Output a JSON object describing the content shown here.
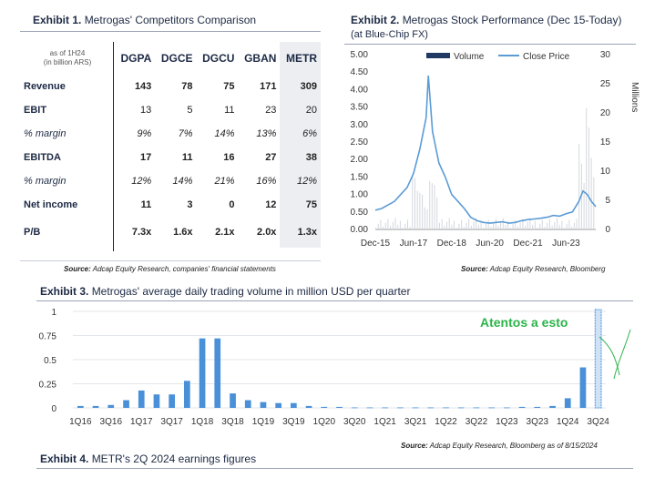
{
  "exhibit1": {
    "num": "Exhibit 1.",
    "title": "Metrogas' Competitors Comparison",
    "as_of_line1": "as of 1H24",
    "as_of_line2": "(in billion ARS)",
    "columns": [
      "DGPA",
      "DGCE",
      "DGCU",
      "GBAN",
      "METR"
    ],
    "rows": [
      {
        "label": "Revenue",
        "style": "bold",
        "values": [
          "143",
          "78",
          "75",
          "171",
          "309"
        ]
      },
      {
        "label": "EBIT",
        "style": "bold-label",
        "values": [
          "13",
          "5",
          "11",
          "23",
          "20"
        ]
      },
      {
        "label": "% margin",
        "style": "italic",
        "values": [
          "9%",
          "7%",
          "14%",
          "13%",
          "6%"
        ]
      },
      {
        "label": "EBITDA",
        "style": "bold",
        "values": [
          "17",
          "11",
          "16",
          "27",
          "38"
        ]
      },
      {
        "label": "% margin",
        "style": "italic",
        "values": [
          "12%",
          "14%",
          "21%",
          "16%",
          "12%"
        ]
      },
      {
        "label": "Net income",
        "style": "bold",
        "values": [
          "11",
          "3",
          "0",
          "12",
          "75"
        ]
      },
      {
        "label": "P/B",
        "style": "bold",
        "values": [
          "7.3x",
          "1.6x",
          "2.1x",
          "2.0x",
          "1.3x"
        ]
      }
    ],
    "source_label": "Source:",
    "source_text": "Adcap Equity Research, companies' financial statements"
  },
  "exhibit2": {
    "num": "Exhibit 2.",
    "title": "Metrogas Stock Performance (Dec 15-Today)",
    "subtitle": "(at Blue-Chip FX)",
    "source_label": "Source:",
    "source_text": "Adcap Equity Research, Bloomberg"
  },
  "exhibit3": {
    "num": "Exhibit 3.",
    "title": "Metrogas' average daily trading volume in million USD per quarter",
    "source_label": "Source:",
    "source_text": "Adcap Equity Research, Bloomberg as of 8/15/2024"
  },
  "exhibit4": {
    "num": "Exhibit 4.",
    "title": "METR's 2Q 2024 earnings figures"
  },
  "annotation": {
    "text": "Atentos a esto",
    "color": "#2db34a"
  },
  "colors": {
    "navy": "#1f3864",
    "line_blue": "#5b9bd5",
    "bar_blue": "#4a90d9",
    "volume_gray": "#c8ccd4"
  },
  "chart_data": [
    {
      "type": "line",
      "id": "stock-performance",
      "title": "Metrogas Stock Performance (Dec 15-Today)",
      "subtitle": "(at Blue-Chip FX)",
      "x_tick_labels": [
        "Dec-15",
        "Jun-17",
        "Dec-18",
        "Jun-20",
        "Dec-21",
        "Jun-23"
      ],
      "y_left": {
        "ticks": [
          "0.00",
          "0.50",
          "1.00",
          "1.50",
          "2.00",
          "2.50",
          "3.00",
          "3.50",
          "4.00",
          "4.50",
          "5.00"
        ],
        "range": [
          0,
          5
        ]
      },
      "y_right": {
        "ticks": [
          "0",
          "5",
          "10",
          "15",
          "20",
          "25",
          "30"
        ],
        "range": [
          0,
          30
        ],
        "label": "Millions"
      },
      "legend": {
        "position": "top",
        "entries": [
          "Volume",
          "Close Price"
        ]
      },
      "series": [
        {
          "name": "Close Price",
          "axis": "left",
          "x": [
            "2015-12",
            "2016-03",
            "2016-06",
            "2016-09",
            "2016-12",
            "2017-03",
            "2017-06",
            "2017-09",
            "2017-12",
            "2018-01",
            "2018-03",
            "2018-06",
            "2018-09",
            "2018-12",
            "2019-03",
            "2019-06",
            "2019-09",
            "2019-12",
            "2020-03",
            "2020-06",
            "2020-09",
            "2020-12",
            "2021-03",
            "2021-06",
            "2021-09",
            "2021-12",
            "2022-03",
            "2022-06",
            "2022-09",
            "2022-12",
            "2023-03",
            "2023-06",
            "2023-09",
            "2023-12",
            "2024-02",
            "2024-04",
            "2024-06",
            "2024-08"
          ],
          "y": [
            0.55,
            0.6,
            0.7,
            0.8,
            1.0,
            1.2,
            1.6,
            2.3,
            3.2,
            4.4,
            2.8,
            1.9,
            1.5,
            1.0,
            0.8,
            0.6,
            0.35,
            0.25,
            0.2,
            0.18,
            0.2,
            0.22,
            0.18,
            0.2,
            0.25,
            0.28,
            0.3,
            0.32,
            0.35,
            0.4,
            0.38,
            0.45,
            0.5,
            0.8,
            1.1,
            1.0,
            0.8,
            0.65
          ]
        },
        {
          "name": "Volume",
          "axis": "right",
          "note": "daily volume, shown as light bars"
        }
      ]
    },
    {
      "type": "bar",
      "id": "avg-daily-volume",
      "title": "Metrogas' average daily trading volume in million USD per quarter",
      "y_ticks": [
        "0",
        "0.25",
        "0.5",
        "0.75",
        "1"
      ],
      "ylim": [
        0,
        1
      ],
      "categories": [
        "1Q16",
        "2Q16",
        "3Q16",
        "4Q16",
        "1Q17",
        "2Q17",
        "3Q17",
        "4Q17",
        "1Q18",
        "2Q18",
        "3Q18",
        "4Q18",
        "1Q19",
        "2Q19",
        "3Q19",
        "4Q19",
        "1Q20",
        "2Q20",
        "3Q20",
        "4Q20",
        "1Q21",
        "2Q21",
        "3Q21",
        "4Q21",
        "1Q22",
        "2Q22",
        "3Q22",
        "4Q22",
        "1Q23",
        "2Q23",
        "3Q23",
        "4Q23",
        "1Q24",
        "2Q24",
        "3Q24"
      ],
      "x_tick_labels": [
        "1Q16",
        "3Q16",
        "1Q17",
        "3Q17",
        "1Q18",
        "3Q18",
        "1Q19",
        "3Q19",
        "1Q20",
        "3Q20",
        "1Q21",
        "3Q21",
        "1Q22",
        "3Q22",
        "1Q23",
        "3Q23",
        "1Q24",
        "3Q24"
      ],
      "values": [
        0.02,
        0.02,
        0.03,
        0.08,
        0.18,
        0.14,
        0.14,
        0.28,
        0.72,
        0.72,
        0.15,
        0.08,
        0.06,
        0.05,
        0.05,
        0.02,
        0.01,
        0.01,
        0.005,
        0.005,
        0.005,
        0.005,
        0.005,
        0.005,
        0.005,
        0.005,
        0.005,
        0.005,
        0.005,
        0.01,
        0.01,
        0.02,
        0.1,
        0.42,
        0.95
      ],
      "highlight_last": true
    }
  ]
}
